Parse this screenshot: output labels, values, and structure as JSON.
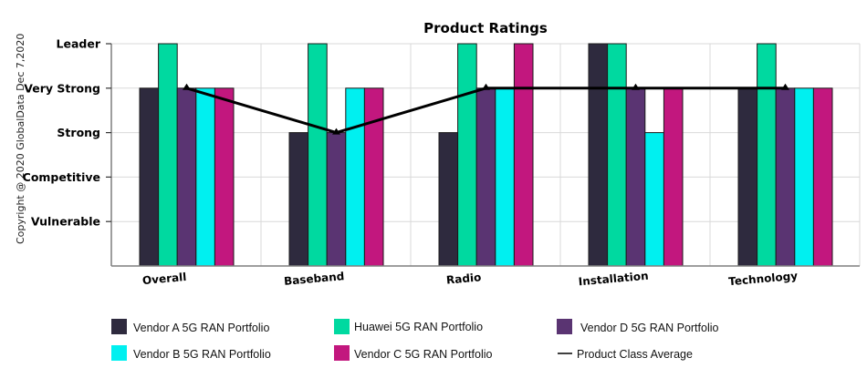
{
  "copyright": "Copyright @ 2020 GlobalData Dec 7,2020",
  "chart_data": {
    "type": "bar",
    "title": "Product Ratings",
    "xlabel": "",
    "ylabel": "",
    "categories": [
      "Overall",
      "Baseband",
      "Radio",
      "Installation",
      "Technology"
    ],
    "y_tick_labels": [
      "Vulnerable",
      "Competitive",
      "Strong",
      "Very Strong",
      "Leader"
    ],
    "y_tick_values": [
      1,
      2,
      3,
      4,
      5
    ],
    "ylim": [
      0,
      5
    ],
    "grid": true,
    "legend_position": "bottom",
    "series": [
      {
        "name": "Vendor A 5G RAN Portfolio",
        "color": "#2e2a3e",
        "values": [
          4,
          3,
          3,
          5,
          4
        ]
      },
      {
        "name": "Huawei 5G RAN Portfolio",
        "color": "#00d9a0",
        "values": [
          5,
          5,
          5,
          5,
          5
        ]
      },
      {
        "name": "Vendor D 5G RAN Portfolio",
        "color": "#5a3472",
        "values": [
          4,
          3,
          4,
          4,
          4
        ]
      },
      {
        "name": "Vendor B 5G RAN Portfolio",
        "color": "#00f0f0",
        "values": [
          4,
          4,
          4,
          3,
          4
        ]
      },
      {
        "name": "Vendor C 5G RAN Portfolio",
        "color": "#c2177e",
        "values": [
          4,
          4,
          5,
          4,
          4
        ]
      }
    ],
    "line_series": {
      "name": "Product Class Average",
      "color": "#000000",
      "values": [
        4,
        3,
        4,
        4,
        4
      ]
    },
    "legend_order": [
      0,
      1,
      2,
      3,
      4,
      "line"
    ]
  }
}
